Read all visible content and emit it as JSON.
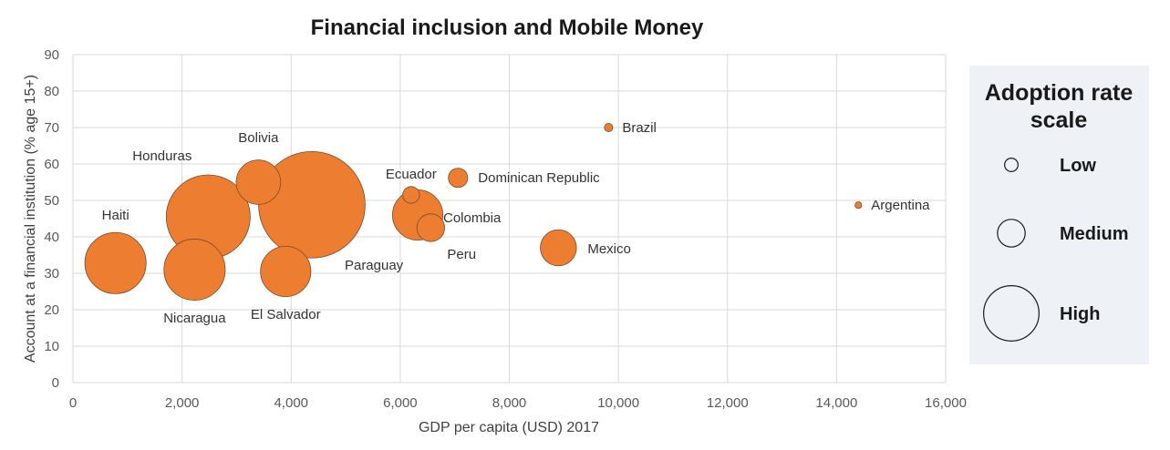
{
  "chart_data": {
    "type": "scatter",
    "title": "Financial inclusion and Mobile Money",
    "xlabel": "GDP per capita (USD) 2017",
    "ylabel": "Account at a financial institution  (% age 15+)",
    "xlim": [
      0,
      16000
    ],
    "ylim": [
      0,
      90
    ],
    "x_ticks": [
      0,
      2000,
      4000,
      6000,
      8000,
      10000,
      12000,
      14000,
      16000
    ],
    "x_tick_labels": [
      "0",
      "2,000",
      "4,000",
      "6,000",
      "8,000",
      "10,000",
      "12,000",
      "14,000",
      "16,000"
    ],
    "y_ticks": [
      0,
      10,
      20,
      30,
      40,
      50,
      60,
      70,
      80,
      90
    ],
    "y_tick_labels": [
      "0",
      "10",
      "20",
      "30",
      "40",
      "50",
      "60",
      "70",
      "80",
      "90"
    ],
    "grid": true,
    "bubble_color": "#ED7D31",
    "bubble_stroke": "#7a4a2a",
    "size_meaning": "Adoption rate of mobile money (relative)",
    "points": [
      {
        "label": "Haiti",
        "x": 780,
        "y": 32.8,
        "size": 0.73
      },
      {
        "label": "Honduras",
        "x": 2480,
        "y": 45.5,
        "size": 1.0
      },
      {
        "label": "Nicaragua",
        "x": 2230,
        "y": 31.0,
        "size": 0.73
      },
      {
        "label": "Bolivia",
        "x": 3400,
        "y": 55.0,
        "size": 0.53
      },
      {
        "label": "Paraguay",
        "x": 4380,
        "y": 48.8,
        "size": 1.27
      },
      {
        "label": "El Salvador",
        "x": 3900,
        "y": 30.5,
        "size": 0.6
      },
      {
        "label": "Ecuador",
        "x": 6200,
        "y": 51.5,
        "size": 0.2
      },
      {
        "label": "Colombia",
        "x": 6320,
        "y": 46.0,
        "size": 0.6
      },
      {
        "label": "Peru",
        "x": 6560,
        "y": 42.5,
        "size": 0.33
      },
      {
        "label": "Dominican Republic",
        "x": 7060,
        "y": 56.2,
        "size": 0.23
      },
      {
        "label": "Mexico",
        "x": 8900,
        "y": 37.0,
        "size": 0.43
      },
      {
        "label": "Brazil",
        "x": 9820,
        "y": 70.0,
        "size": 0.1
      },
      {
        "label": "Argentina",
        "x": 14400,
        "y": 48.7,
        "size": 0.08
      }
    ],
    "legend": {
      "title_lines": [
        "Adoption rate",
        "scale"
      ],
      "placement": "right",
      "items": [
        {
          "label": "Low",
          "size": 0.16
        },
        {
          "label": "Medium",
          "size": 0.33
        },
        {
          "label": "High",
          "size": 0.66
        }
      ]
    }
  }
}
